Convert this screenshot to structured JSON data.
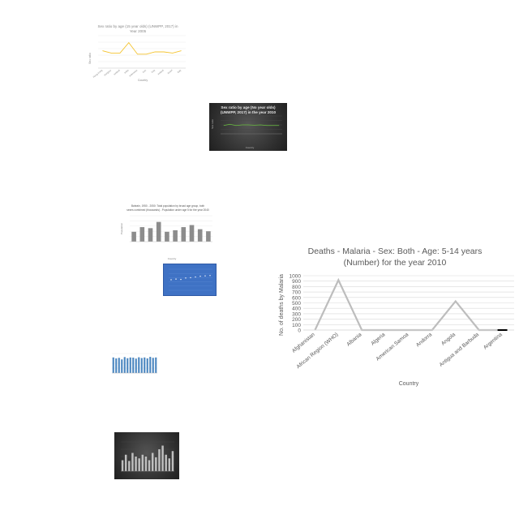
{
  "chart_data": [
    {
      "type": "line",
      "title_line1": "Sex ratio by age (15 year olds) (UNWPP, 2017) in",
      "title_line2": "Year 2005",
      "xlabel": "Country",
      "ylabel": "Sex ratio",
      "categories": [
        "Hong Kong",
        "Hungary",
        "Iceland",
        "India",
        "Indonesia",
        "Iran",
        "Iraq",
        "Ireland",
        "Israel",
        "Italy"
      ],
      "values": [
        1.055,
        1.045,
        1.045,
        1.09,
        1.04,
        1.04,
        1.05,
        1.05,
        1.045,
        1.055
      ],
      "ylim": [
        0.98,
        1.12
      ],
      "color": "#f4c430",
      "grid": true
    },
    {
      "type": "line",
      "title_line1": "Sex ratio by age (No year olds)",
      "title_line2": "(UNWPP, 2017) in the year 2010",
      "xlabel": "Country",
      "ylabel": "Sex ratio",
      "values": [
        1.04,
        1.06,
        1.04,
        1.05,
        1.05,
        1.045,
        1.05,
        1.04,
        1.04,
        1.04
      ],
      "ylim": [
        0.9,
        1.2
      ],
      "color": "#6abf40",
      "grid": true
    },
    {
      "type": "bar",
      "title_line1": "Bahrain, 1950 - 2050: Total population by broad age group, both",
      "title_line2": "sexes combined (thousands) - Population under age 5 for the year 2040",
      "xlabel": "Country",
      "ylabel": "Population",
      "values": [
        95,
        140,
        130,
        190,
        95,
        110,
        140,
        160,
        120,
        100
      ],
      "ylim": [
        0,
        250
      ],
      "color": "#8c8c8c",
      "grid": true
    },
    {
      "type": "scatter",
      "values": [
        30,
        32,
        31,
        35,
        36,
        38,
        40,
        41,
        42
      ],
      "ylim": [
        0,
        60
      ],
      "color": "#ffffff",
      "grid": true
    },
    {
      "type": "bar",
      "values": [
        80,
        75,
        78,
        70,
        82,
        76,
        80,
        79,
        74,
        81,
        77,
        80,
        75,
        83,
        78,
        80
      ],
      "ylim": [
        0,
        100
      ],
      "color": "#4a86c0",
      "grid": true
    },
    {
      "type": "bar",
      "values": [
        30,
        45,
        28,
        50,
        40,
        35,
        45,
        40,
        30,
        50,
        38,
        60,
        70,
        45,
        35,
        55
      ],
      "ylim": [
        0,
        80
      ],
      "color": "#bfbfbf",
      "grid": true
    },
    {
      "type": "line",
      "title_line1": "Deaths - Malaria - Sex: Both - Age: 5-14 years",
      "title_line2": "(Number) for the year 2010",
      "xlabel": "Country",
      "ylabel": "No. of deaths by Malaria",
      "categories": [
        "Afghanistan",
        "African Region (WHO)",
        "Albania",
        "Algeria",
        "American Samoa",
        "Andorra",
        "Angola",
        "Antigua and Barbuda",
        "Argentina"
      ],
      "values": [
        0,
        920,
        0,
        0,
        0,
        0,
        530,
        0,
        0
      ],
      "yticks": [
        "0",
        "100",
        "200",
        "300",
        "400",
        "500",
        "600",
        "700",
        "800",
        "900",
        "1000"
      ],
      "ylim": [
        0,
        1000
      ],
      "color": "#bdbdbd",
      "grid": true
    }
  ]
}
